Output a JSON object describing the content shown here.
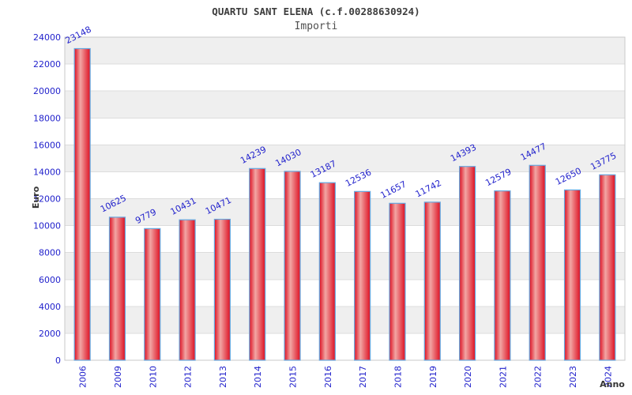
{
  "chart_data": {
    "type": "bar",
    "title": "QUARTU SANT ELENA (c.f.00288630924)",
    "subtitle": "Importi",
    "xlabel": "Anno",
    "ylabel": "Euro",
    "categories": [
      "2006",
      "2009",
      "2010",
      "2012",
      "2013",
      "2014",
      "2015",
      "2016",
      "2017",
      "2018",
      "2019",
      "2020",
      "2021",
      "2022",
      "2023",
      "2024"
    ],
    "values": [
      23148,
      10625,
      9779,
      10431,
      10471,
      14239,
      14030,
      13187,
      12536,
      11657,
      11742,
      14393,
      12579,
      14477,
      12650,
      13775
    ],
    "ylim": [
      0,
      24000
    ],
    "ytick_step": 2000,
    "ytick_labels": [
      "0",
      "2000",
      "4000",
      "6000",
      "8000",
      "10000",
      "12000",
      "14000",
      "16000",
      "18000",
      "20000",
      "22000",
      "24000"
    ],
    "grid": true,
    "legend": false,
    "value_labels_shown": true,
    "colors": {
      "bar_edge": "#dd1022",
      "bar_center": "#f2a6a4",
      "bar_border": "#66a9e0",
      "tick_label": "#2222cc",
      "value_label": "#2222cc",
      "band_gray": "#efefef",
      "band_white": "#ffffff",
      "grid_line": "#dcdcdc",
      "plot_border": "#c8c8c8",
      "axis_title": "#333333"
    }
  }
}
